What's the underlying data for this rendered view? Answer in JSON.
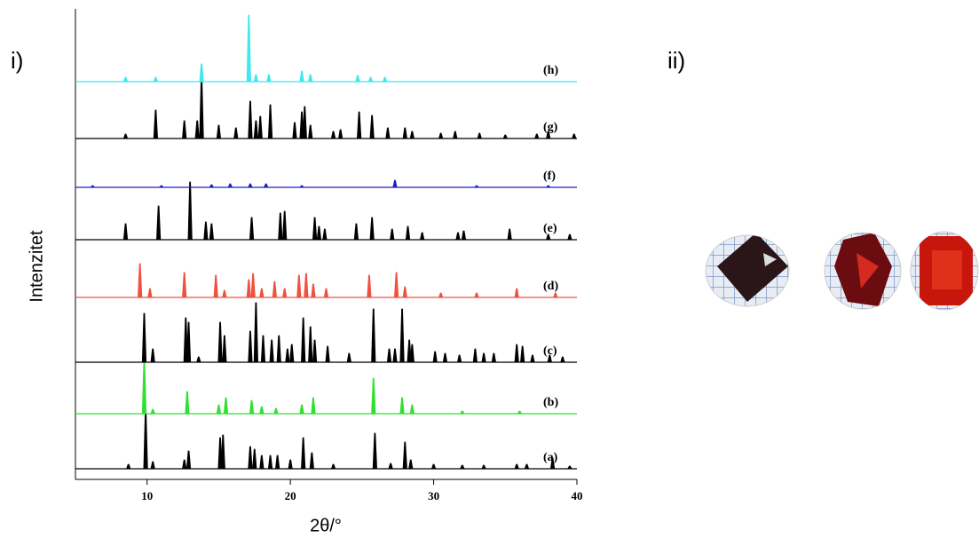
{
  "chart_data": {
    "type": "line",
    "panel_labels": [
      "i)",
      "ii)"
    ],
    "xlabel": "2θ/°",
    "ylabel": "Intenzitet",
    "xlim": [
      5,
      40
    ],
    "xticks": [
      10,
      20,
      30,
      40
    ],
    "ylim": [
      0,
      80
    ],
    "series": [
      {
        "name": "(a)",
        "color": "#000000",
        "x": [
          8.7,
          9.9,
          10.4,
          12.6,
          12.9,
          15.1,
          15.3,
          17.2,
          17.5,
          18.0,
          18.6,
          19.1,
          20.0,
          20.9,
          21.5,
          23.0,
          25.9,
          27.0,
          28.0,
          28.4,
          30.0,
          32.0,
          33.5,
          35.8,
          36.5,
          38.3,
          39.5
        ],
        "values": [
          5,
          66,
          8,
          10,
          20,
          35,
          38,
          25,
          22,
          15,
          15,
          15,
          10,
          35,
          18,
          5,
          40,
          6,
          30,
          10,
          5,
          4,
          4,
          5,
          5,
          12,
          3
        ]
      },
      {
        "name": "(b)",
        "color": "#30e030",
        "x": [
          9.8,
          10.4,
          12.8,
          15.0,
          15.5,
          17.3,
          18.0,
          19.0,
          20.8,
          21.6,
          25.8,
          27.8,
          28.5,
          32.0,
          36.0
        ],
        "values": [
          60,
          5,
          25,
          10,
          18,
          15,
          8,
          6,
          10,
          18,
          40,
          18,
          10,
          3,
          3
        ]
      },
      {
        "name": "(c)",
        "color": "#000000",
        "x": [
          9.8,
          10.4,
          12.7,
          12.9,
          13.6,
          15.1,
          15.4,
          17.2,
          17.6,
          18.1,
          18.7,
          19.2,
          19.8,
          20.1,
          20.9,
          21.4,
          21.7,
          22.6,
          24.1,
          25.8,
          26.9,
          27.3,
          27.8,
          28.3,
          28.5,
          30.1,
          30.8,
          31.8,
          32.9,
          33.5,
          34.2,
          35.8,
          36.2,
          36.9,
          38.1,
          39.0
        ],
        "values": [
          55,
          15,
          50,
          45,
          6,
          45,
          30,
          35,
          67,
          30,
          25,
          30,
          15,
          20,
          50,
          40,
          25,
          18,
          10,
          60,
          15,
          15,
          60,
          25,
          20,
          12,
          10,
          8,
          15,
          10,
          10,
          20,
          18,
          8,
          8,
          6
        ]
      },
      {
        "name": "(d)",
        "color": "#f05040",
        "x": [
          9.5,
          10.2,
          12.6,
          14.8,
          15.4,
          17.1,
          17.4,
          18.0,
          18.9,
          19.6,
          20.6,
          21.1,
          21.6,
          22.5,
          25.5,
          27.4,
          28.0,
          30.5,
          33.0,
          35.8,
          38.5
        ],
        "values": [
          38,
          10,
          28,
          25,
          8,
          20,
          27,
          10,
          18,
          10,
          25,
          27,
          15,
          10,
          25,
          28,
          12,
          5,
          5,
          10,
          5
        ]
      },
      {
        "name": "(e)",
        "color": "#000000",
        "x": [
          8.5,
          10.8,
          13.0,
          14.1,
          14.5,
          17.3,
          19.3,
          19.6,
          21.7,
          22.0,
          22.4,
          24.6,
          25.7,
          27.1,
          28.2,
          29.2,
          31.7,
          32.1,
          35.3,
          38.0,
          39.5
        ],
        "values": [
          18,
          38,
          65,
          20,
          18,
          25,
          30,
          32,
          25,
          15,
          12,
          18,
          25,
          12,
          15,
          8,
          8,
          10,
          12,
          6,
          6
        ]
      },
      {
        "name": "(f)",
        "color": "#2020c0",
        "x": [
          6.2,
          11.0,
          14.5,
          15.8,
          17.2,
          18.3,
          20.8,
          27.3,
          33.0,
          38.0
        ],
        "values": [
          2,
          2,
          3,
          4,
          4,
          4,
          2,
          8,
          2,
          2
        ]
      },
      {
        "name": "(g)",
        "color": "#000000",
        "x": [
          8.5,
          10.6,
          12.6,
          13.5,
          13.8,
          15.0,
          16.2,
          17.2,
          17.6,
          17.9,
          18.6,
          20.3,
          20.8,
          21.0,
          21.4,
          23.0,
          23.5,
          24.8,
          25.7,
          26.8,
          28.0,
          28.5,
          30.5,
          31.5,
          33.2,
          35.0,
          37.2,
          38.0,
          39.8
        ],
        "values": [
          5,
          32,
          20,
          20,
          70,
          15,
          12,
          42,
          20,
          25,
          38,
          18,
          30,
          36,
          15,
          8,
          10,
          30,
          26,
          12,
          12,
          8,
          6,
          8,
          6,
          4,
          5,
          8,
          5
        ]
      },
      {
        "name": "(h)",
        "color": "#3ee8f0",
        "x": [
          8.5,
          10.6,
          13.8,
          17.1,
          17.6,
          18.5,
          20.8,
          21.4,
          24.7,
          25.6,
          26.6
        ],
        "values": [
          5,
          5,
          20,
          75,
          8,
          8,
          12,
          8,
          7,
          5,
          5
        ]
      }
    ]
  }
}
